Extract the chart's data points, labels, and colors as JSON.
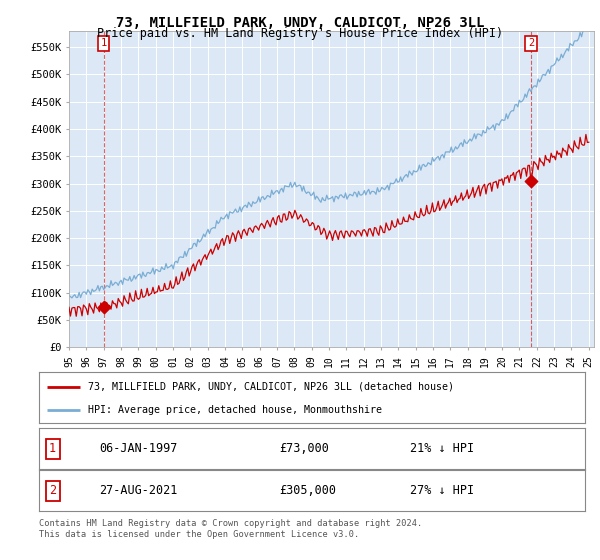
{
  "title": "73, MILLFIELD PARK, UNDY, CALDICOT, NP26 3LL",
  "subtitle": "Price paid vs. HM Land Registry's House Price Index (HPI)",
  "ylim": [
    0,
    580000
  ],
  "yticks": [
    0,
    50000,
    100000,
    150000,
    200000,
    250000,
    300000,
    350000,
    400000,
    450000,
    500000,
    550000
  ],
  "ytick_labels": [
    "£0",
    "£50K",
    "£100K",
    "£150K",
    "£200K",
    "£250K",
    "£300K",
    "£350K",
    "£400K",
    "£450K",
    "£500K",
    "£550K"
  ],
  "property_color": "#cc0000",
  "hpi_color": "#7aadd4",
  "sale1_year": 1997.04,
  "sale1_price": 73000,
  "sale2_year": 2021.65,
  "sale2_price": 305000,
  "legend_line1": "73, MILLFIELD PARK, UNDY, CALDICOT, NP26 3LL (detached house)",
  "legend_line2": "HPI: Average price, detached house, Monmouthshire",
  "sale1_date": "06-JAN-1997",
  "sale2_date": "27-AUG-2021",
  "sale1_hpi_pct": "21% ↓ HPI",
  "sale2_hpi_pct": "27% ↓ HPI",
  "footer": "Contains HM Land Registry data © Crown copyright and database right 2024.\nThis data is licensed under the Open Government Licence v3.0.",
  "plot_bg_color": "#dce8f5",
  "grid_color": "#ffffff"
}
